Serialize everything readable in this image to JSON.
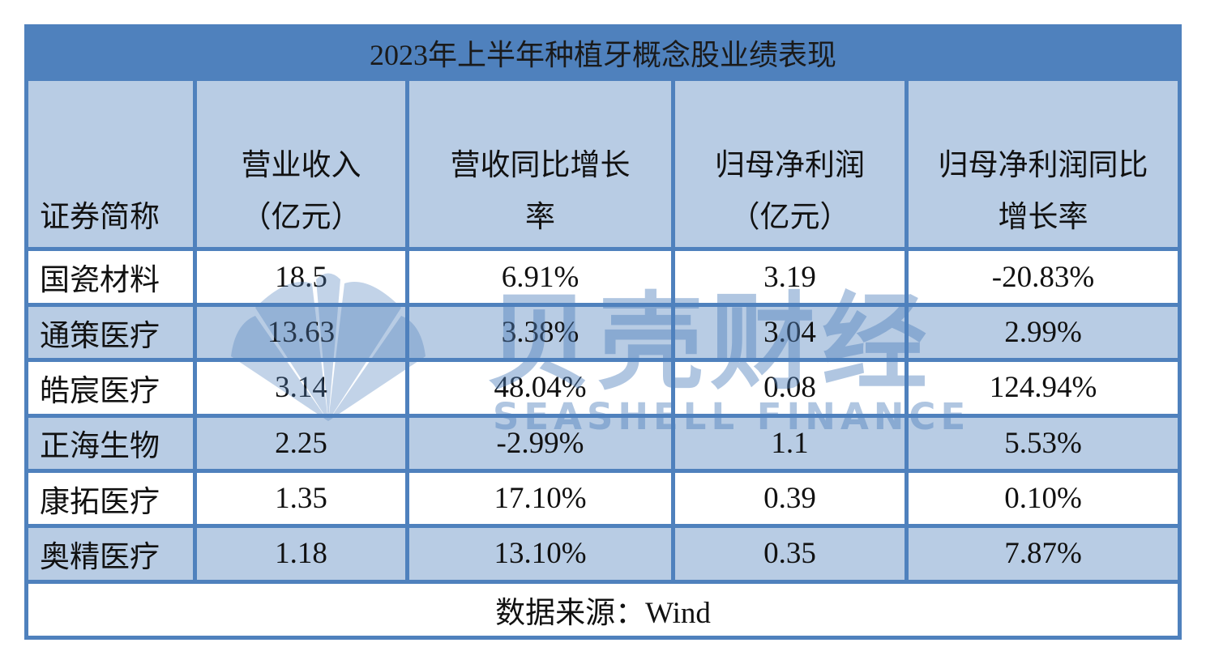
{
  "title": "2023年上半年种植牙概念股业绩表现",
  "table": {
    "header": [
      [
        "证券简称"
      ],
      [
        "营业收入",
        "（亿元）"
      ],
      [
        "营收同比增长",
        "率"
      ],
      [
        "归母净利润",
        "（亿元）"
      ],
      [
        "归母净利润同比",
        "增长率"
      ]
    ],
    "rows": [
      [
        "国瓷材料",
        "18.5",
        "6.91%",
        "3.19",
        "-20.83%"
      ],
      [
        "通策医疗",
        "13.63",
        "3.38%",
        "3.04",
        "2.99%"
      ],
      [
        "皓宸医疗",
        "3.14",
        "48.04%",
        "0.08",
        "124.94%"
      ],
      [
        "正海生物",
        "2.25",
        "-2.99%",
        "1.1",
        "5.53%"
      ],
      [
        "康拓医疗",
        "1.35",
        "17.10%",
        "0.39",
        "0.10%"
      ],
      [
        "奥精医疗",
        "1.18",
        "13.10%",
        "0.35",
        "7.87%"
      ]
    ]
  },
  "source": "数据来源：Wind",
  "watermark": {
    "title": "贝壳财经",
    "subtitle": "SEASHELL FINANCE"
  }
}
